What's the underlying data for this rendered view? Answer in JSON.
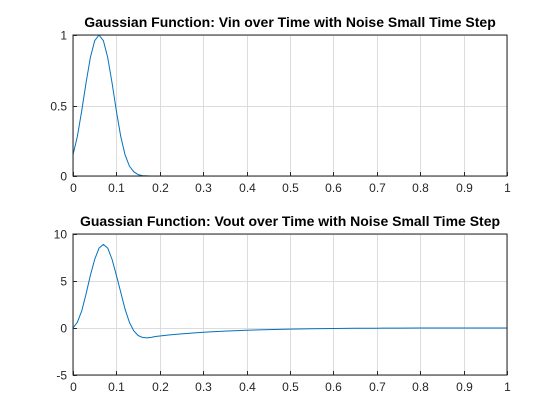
{
  "chart_data": [
    {
      "type": "line",
      "title": "Gaussian Function: Vin over Time with Noise Small Time Step",
      "xlabel": "",
      "ylabel": "",
      "xlim": [
        0,
        1
      ],
      "ylim": [
        0,
        1
      ],
      "xticks": [
        "0",
        "0.1",
        "0.2",
        "0.3",
        "0.4",
        "0.5",
        "0.6",
        "0.7",
        "0.8",
        "0.9",
        "1"
      ],
      "yticks": [
        "0",
        "0.5",
        "1"
      ],
      "grid": true,
      "color": "#0072BD",
      "series": [
        {
          "x": [
            0,
            0.01,
            0.02,
            0.03,
            0.04,
            0.05,
            0.06,
            0.07,
            0.08,
            0.09,
            0.1,
            0.11,
            0.12,
            0.13,
            0.14,
            0.15,
            0.16,
            0.18,
            0.2,
            0.3,
            0.4,
            0.5,
            0.6,
            0.7,
            0.8,
            0.9,
            1.0
          ],
          "y": [
            0.15,
            0.28,
            0.46,
            0.66,
            0.84,
            0.96,
            1.0,
            0.96,
            0.84,
            0.66,
            0.46,
            0.28,
            0.15,
            0.07,
            0.03,
            0.01,
            0.003,
            0.0,
            0.0,
            0.0,
            0.0,
            0.0,
            0.0,
            0.0,
            0.0,
            0.0,
            0.0
          ]
        }
      ]
    },
    {
      "type": "line",
      "title": "Guassian Function: Vout over Time with Noise Small Time Step",
      "xlabel": "",
      "ylabel": "",
      "xlim": [
        0,
        1
      ],
      "ylim": [
        -5,
        10
      ],
      "xticks": [
        "0",
        "0.1",
        "0.2",
        "0.3",
        "0.4",
        "0.5",
        "0.6",
        "0.7",
        "0.8",
        "0.9",
        "1"
      ],
      "yticks": [
        "-5",
        "0",
        "5",
        "10"
      ],
      "grid": true,
      "color": "#0072BD",
      "series": [
        {
          "x": [
            0,
            0.01,
            0.02,
            0.03,
            0.04,
            0.05,
            0.06,
            0.07,
            0.08,
            0.09,
            0.1,
            0.11,
            0.12,
            0.13,
            0.14,
            0.15,
            0.16,
            0.17,
            0.18,
            0.19,
            0.2,
            0.22,
            0.25,
            0.3,
            0.35,
            0.4,
            0.45,
            0.5,
            0.55,
            0.6,
            0.65,
            0.7,
            0.75,
            0.8,
            0.85,
            0.9,
            0.95,
            1.0
          ],
          "y": [
            0.0,
            0.6,
            1.8,
            3.6,
            5.6,
            7.3,
            8.5,
            8.9,
            8.5,
            7.3,
            5.6,
            3.8,
            2.0,
            0.6,
            -0.3,
            -0.8,
            -1.0,
            -1.05,
            -1.0,
            -0.9,
            -0.85,
            -0.75,
            -0.62,
            -0.45,
            -0.33,
            -0.24,
            -0.17,
            -0.12,
            -0.08,
            -0.05,
            -0.03,
            -0.02,
            -0.01,
            0.0,
            0.0,
            0.0,
            0.0,
            0.0
          ]
        }
      ]
    }
  ]
}
